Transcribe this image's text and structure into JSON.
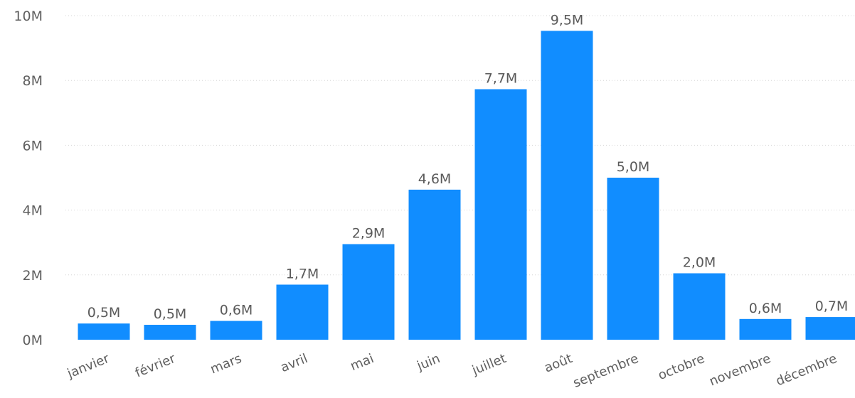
{
  "chart_data": {
    "type": "bar",
    "title": "",
    "xlabel": "",
    "ylabel": "",
    "categories": [
      "janvier",
      "février",
      "mars",
      "avril",
      "mai",
      "juin",
      "juillet",
      "août",
      "septembre",
      "octobre",
      "novembre",
      "décembre"
    ],
    "values": [
      0.5,
      0.46,
      0.58,
      1.7,
      2.95,
      4.63,
      7.73,
      9.53,
      5.0,
      2.05,
      0.64,
      0.7
    ],
    "data_labels": [
      "0,5M",
      "0,5M",
      "0,6M",
      "1,7M",
      "2,9M",
      "4,6M",
      "7,7M",
      "9,5M",
      "5,0M",
      "2,0M",
      "0,6M",
      "0,7M"
    ],
    "ylim": [
      0,
      10
    ],
    "y_ticks": [
      0,
      2,
      4,
      6,
      8,
      10
    ],
    "y_tick_labels": [
      "0M",
      "2M",
      "4M",
      "6M",
      "8M",
      "10M"
    ],
    "grid": true,
    "bar_color": "#118DFF"
  }
}
